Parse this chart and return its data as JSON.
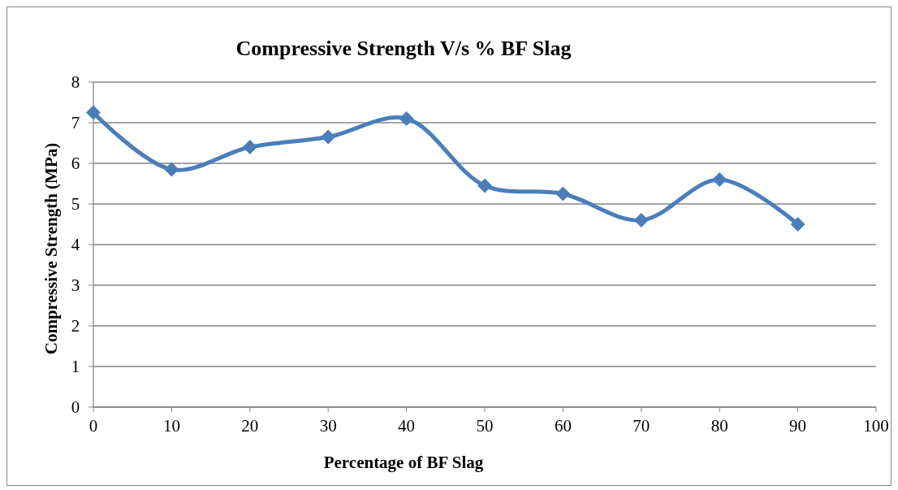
{
  "chart_data": {
    "type": "line",
    "title": "Compressive Strength V/s % BF Slag",
    "xlabel": "Percentage of BF Slag",
    "ylabel": "Compressive Strength (MPa)",
    "x": [
      0,
      10,
      20,
      30,
      40,
      50,
      60,
      70,
      80,
      90
    ],
    "series": [
      {
        "color": "#4a7ebb",
        "values": [
          7.25,
          5.85,
          6.4,
          6.65,
          7.1,
          5.45,
          5.25,
          4.6,
          5.6,
          4.5
        ]
      }
    ],
    "xlim": [
      0,
      100
    ],
    "xticks": [
      0,
      10,
      20,
      30,
      40,
      50,
      60,
      70,
      80,
      90,
      100
    ],
    "ylim": [
      0,
      8
    ],
    "yticks": [
      0,
      1,
      2,
      3,
      4,
      5,
      6,
      7,
      8
    ],
    "grid": "y",
    "marker": "diamond",
    "line_style": "solid"
  }
}
